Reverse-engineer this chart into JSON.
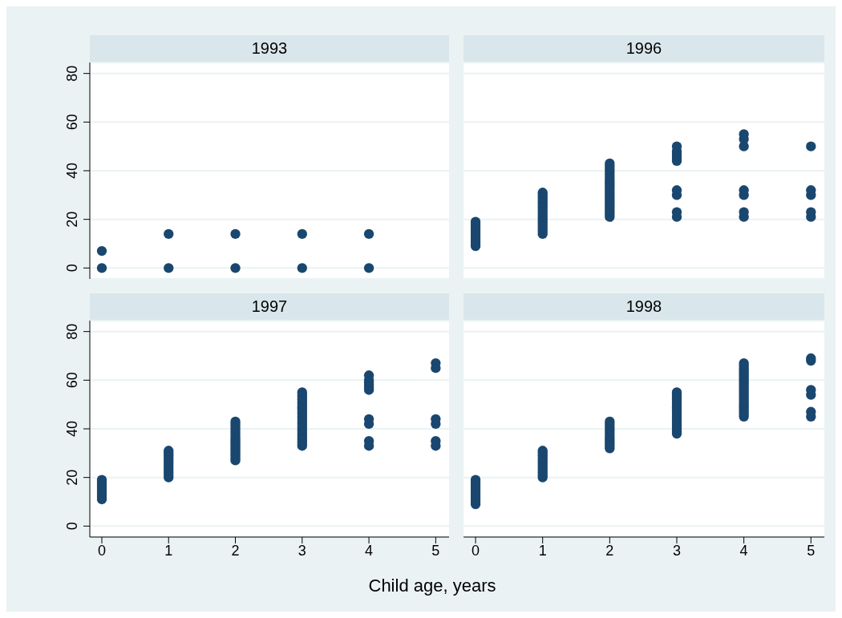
{
  "chart_data": [
    {
      "type": "scatter",
      "title": "1993",
      "color": "#1a476f",
      "marker": "circle",
      "grid": "y",
      "tick_labels": "y",
      "xlim": [
        -0.18,
        5.2
      ],
      "ylim": [
        -4.5,
        84.5
      ],
      "xticks": [
        0,
        1,
        2,
        3,
        4,
        5
      ],
      "yticks": [
        0,
        20,
        40,
        60,
        80
      ],
      "x": [
        0,
        0,
        1,
        1,
        2,
        2,
        3,
        3,
        4,
        4
      ],
      "values": [
        0,
        7,
        0,
        14,
        0,
        14,
        0,
        14,
        0,
        14
      ]
    },
    {
      "type": "scatter",
      "title": "1996",
      "color": "#1a476f",
      "marker": "circle",
      "grid": "y",
      "tick_labels": false,
      "xlim": [
        -0.18,
        5.2
      ],
      "ylim": [
        -4.5,
        84.5
      ],
      "xticks": [
        0,
        1,
        2,
        3,
        4,
        5
      ],
      "yticks": [
        0,
        20,
        40,
        60,
        80
      ],
      "x": [
        0,
        0,
        0,
        0,
        0,
        0,
        0,
        0,
        0,
        0,
        0,
        1,
        1,
        1,
        1,
        1,
        1,
        1,
        1,
        1,
        1,
        1,
        1,
        1,
        1,
        1,
        1,
        1,
        1,
        2,
        2,
        2,
        2,
        2,
        2,
        2,
        2,
        2,
        2,
        2,
        2,
        2,
        2,
        2,
        2,
        2,
        2,
        2,
        2,
        2,
        2,
        2,
        3,
        3,
        3,
        3,
        3,
        3,
        3,
        3,
        3,
        3,
        4,
        4,
        4,
        4,
        4,
        4,
        4,
        5,
        5,
        5,
        5,
        5
      ],
      "values": [
        9,
        10,
        11,
        12,
        13,
        14,
        15,
        16,
        17,
        18,
        19,
        14,
        15,
        16,
        17,
        18,
        19,
        20,
        21,
        22,
        23,
        24,
        25,
        26,
        27,
        28,
        29,
        30,
        31,
        21,
        22,
        23,
        24,
        25,
        26,
        27,
        28,
        29,
        30,
        31,
        32,
        33,
        34,
        35,
        36,
        37,
        38,
        39,
        40,
        41,
        42,
        43,
        44,
        45,
        46,
        47,
        48,
        50,
        30,
        32,
        21,
        23,
        50,
        53,
        55,
        30,
        32,
        21,
        23,
        50,
        30,
        32,
        21,
        23
      ]
    },
    {
      "type": "scatter",
      "title": "1997",
      "xlabel": "Child age, years",
      "color": "#1a476f",
      "marker": "circle",
      "grid": "y",
      "xlim": [
        -0.18,
        5.2
      ],
      "ylim": [
        -4.5,
        84.5
      ],
      "xticks": [
        0,
        1,
        2,
        3,
        4,
        5
      ],
      "yticks": [
        0,
        20,
        40,
        60,
        80
      ],
      "x": [
        0,
        0,
        0,
        0,
        0,
        0,
        0,
        0,
        0,
        1,
        1,
        1,
        1,
        1,
        1,
        1,
        1,
        1,
        1,
        1,
        1,
        2,
        2,
        2,
        2,
        2,
        2,
        2,
        2,
        2,
        2,
        2,
        2,
        2,
        2,
        2,
        2,
        2,
        3,
        3,
        3,
        3,
        3,
        3,
        3,
        3,
        3,
        3,
        3,
        3,
        3,
        3,
        3,
        3,
        3,
        3,
        3,
        3,
        3,
        3,
        3,
        4,
        4,
        4,
        4,
        4,
        4,
        4,
        4,
        4,
        4,
        5,
        5,
        5,
        5,
        5,
        5
      ],
      "values": [
        11,
        12,
        13,
        14,
        15,
        16,
        17,
        18,
        19,
        20,
        21,
        22,
        23,
        24,
        25,
        26,
        27,
        28,
        29,
        30,
        31,
        27,
        28,
        29,
        30,
        31,
        32,
        33,
        34,
        35,
        36,
        37,
        38,
        39,
        40,
        41,
        42,
        43,
        33,
        34,
        35,
        36,
        37,
        38,
        39,
        40,
        41,
        42,
        43,
        44,
        45,
        46,
        47,
        48,
        49,
        50,
        51,
        52,
        53,
        54,
        55,
        56,
        57,
        58,
        59,
        60,
        62,
        44,
        42,
        35,
        33,
        67,
        65,
        44,
        42,
        35,
        33
      ]
    },
    {
      "type": "scatter",
      "title": "1998",
      "color": "#1a476f",
      "marker": "circle",
      "grid": "y",
      "tick_labels": "x",
      "xlim": [
        -0.18,
        5.2
      ],
      "ylim": [
        -4.5,
        84.5
      ],
      "xticks": [
        0,
        1,
        2,
        3,
        4,
        5
      ],
      "yticks": [
        0,
        20,
        40,
        60,
        80
      ],
      "x": [
        0,
        0,
        0,
        0,
        0,
        0,
        0,
        0,
        0,
        0,
        0,
        1,
        1,
        1,
        1,
        1,
        1,
        1,
        1,
        1,
        1,
        1,
        1,
        2,
        2,
        2,
        2,
        2,
        2,
        2,
        2,
        2,
        2,
        2,
        2,
        3,
        3,
        3,
        3,
        3,
        3,
        3,
        3,
        3,
        3,
        3,
        3,
        3,
        3,
        3,
        3,
        3,
        3,
        4,
        4,
        4,
        4,
        4,
        4,
        4,
        4,
        4,
        4,
        4,
        4,
        4,
        4,
        4,
        4,
        4,
        4,
        4,
        4,
        4,
        4,
        4,
        5,
        5,
        5,
        5,
        5,
        5
      ],
      "values": [
        9,
        10,
        11,
        12,
        13,
        14,
        15,
        16,
        17,
        18,
        19,
        20,
        21,
        22,
        23,
        24,
        25,
        26,
        27,
        28,
        29,
        30,
        31,
        32,
        33,
        34,
        35,
        36,
        37,
        38,
        39,
        40,
        41,
        42,
        43,
        38,
        39,
        40,
        41,
        42,
        43,
        44,
        45,
        46,
        47,
        48,
        49,
        50,
        51,
        52,
        53,
        54,
        55,
        45,
        46,
        47,
        48,
        49,
        50,
        51,
        52,
        53,
        54,
        55,
        56,
        57,
        58,
        59,
        60,
        61,
        62,
        63,
        64,
        65,
        66,
        67,
        69,
        68,
        56,
        54,
        47,
        45
      ]
    }
  ]
}
